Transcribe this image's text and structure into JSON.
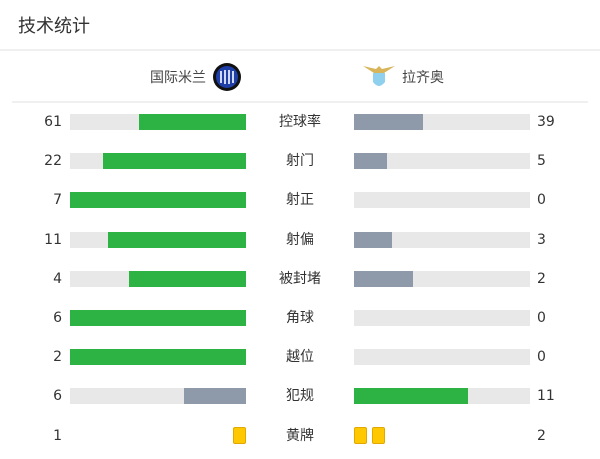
{
  "title": "技术统计",
  "home": {
    "name": "国际米兰",
    "logo": "inter-milan-logo"
  },
  "away": {
    "name": "拉齐奥",
    "logo": "lazio-logo"
  },
  "colors": {
    "leader": "#2db343",
    "trailer": "#8e99aa",
    "track": "#e8e8e8",
    "yellow_card": "#ffc800"
  },
  "stats": [
    {
      "label": "控球率",
      "home": "61",
      "away": "39"
    },
    {
      "label": "射门",
      "home": "22",
      "away": "5"
    },
    {
      "label": "射正",
      "home": "7",
      "away": "0"
    },
    {
      "label": "射偏",
      "home": "11",
      "away": "3"
    },
    {
      "label": "被封堵",
      "home": "4",
      "away": "2"
    },
    {
      "label": "角球",
      "home": "6",
      "away": "0"
    },
    {
      "label": "越位",
      "home": "2",
      "away": "0"
    },
    {
      "label": "犯规",
      "home": "6",
      "away": "11"
    },
    {
      "label": "黄牌",
      "home": "1",
      "away": "2",
      "type": "cards"
    }
  ]
}
